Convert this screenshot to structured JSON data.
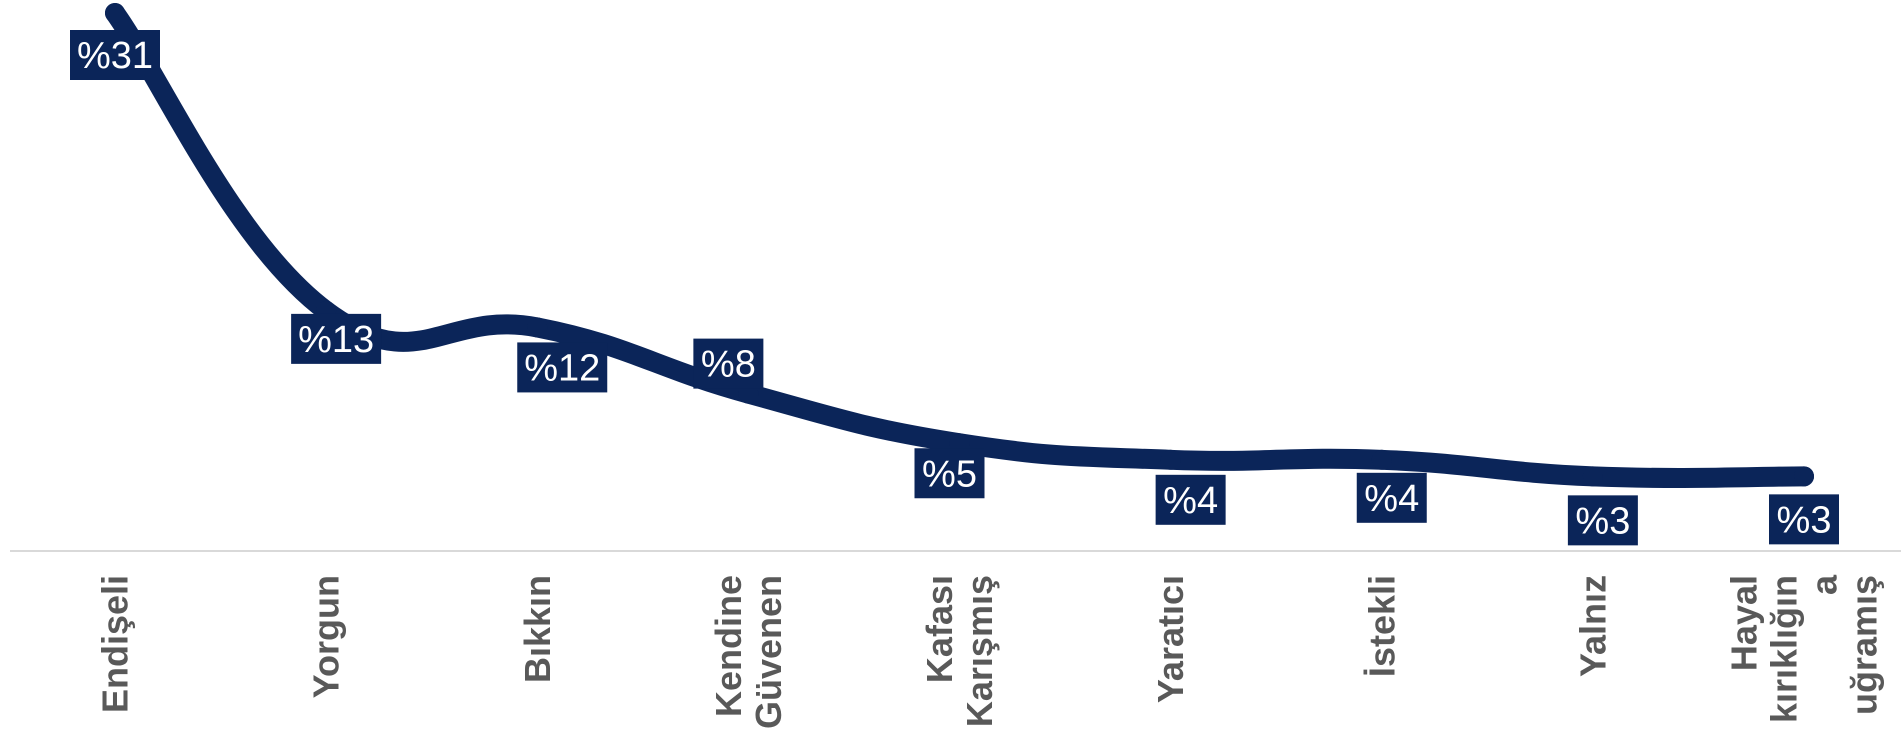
{
  "chart_data": {
    "type": "line",
    "title": "",
    "xlabel": "",
    "ylabel": "",
    "categories": [
      "Endişeli",
      "Yorgun",
      "Bıkkın",
      "Kendine Güvenen",
      "Kafası Karışmış",
      "Yaratıcı",
      "İstekli",
      "Yalnız",
      "Hayal kırıklığına uğramış"
    ],
    "category_lines": [
      [
        "Endişeli"
      ],
      [
        "Yorgun"
      ],
      [
        "Bıkkın"
      ],
      [
        "Kendine",
        "Güvenen"
      ],
      [
        "Kafası",
        "Karışmış"
      ],
      [
        "Yaratıcı"
      ],
      [
        "İstekli"
      ],
      [
        "Yalnız"
      ],
      [
        "Hayal",
        "kırıklığın",
        "a",
        "uğramış"
      ]
    ],
    "series": [
      {
        "values": [
          31,
          13,
          12,
          8,
          5,
          4,
          4,
          3,
          3
        ],
        "data_labels": [
          "%31",
          "%13",
          "%12",
          "%8",
          "%5",
          "%4",
          "%4",
          "%3",
          "%3"
        ]
      }
    ],
    "ylim": [
      0,
      31
    ],
    "grid": false,
    "legend": "none",
    "colors": {
      "line": "#0b2559",
      "label_bg": "#0b2559",
      "label_text": "#ffffff",
      "axis_line": "#d9d9d9",
      "tick_text": "#595959"
    }
  }
}
